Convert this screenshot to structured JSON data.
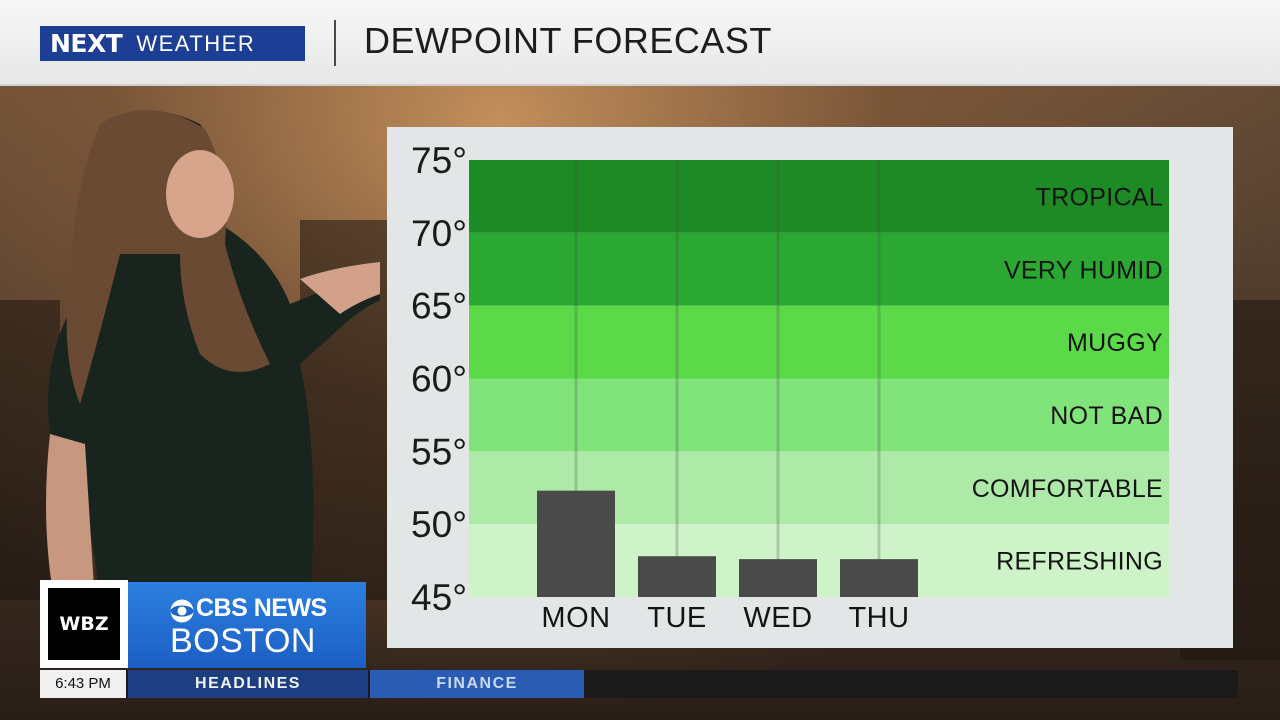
{
  "header": {
    "logo_next": "NEXT",
    "logo_weather": "WEATHER",
    "title": "DEWPOINT FORECAST"
  },
  "chart_data": {
    "type": "bar",
    "title": "DEWPOINT FORECAST",
    "categories": [
      "MON",
      "TUE",
      "WED",
      "THU"
    ],
    "values": [
      52.3,
      47.8,
      47.6,
      47.6
    ],
    "ylim": [
      45,
      75
    ],
    "yticks": [
      75,
      70,
      65,
      60,
      55,
      50,
      45
    ],
    "tick_suffix": "°",
    "grid": false,
    "bar_color": "#4a4a4a",
    "bands": [
      {
        "label": "TROPICAL",
        "from": 70,
        "to": 75,
        "color": "#1d8a26"
      },
      {
        "label": "VERY HUMID",
        "from": 65,
        "to": 70,
        "color": "#2aa831"
      },
      {
        "label": "MUGGY",
        "from": 60,
        "to": 65,
        "color": "#5bd948"
      },
      {
        "label": "NOT BAD",
        "from": 55,
        "to": 60,
        "color": "#80e47a"
      },
      {
        "label": "COMFORTABLE",
        "from": 50,
        "to": 55,
        "color": "#ade9a7"
      },
      {
        "label": "REFRESHING",
        "from": 45,
        "to": 50,
        "color": "#cef3c9"
      }
    ]
  },
  "lower_third": {
    "station": "WBZ",
    "network": "CBS NEWS",
    "city": "BOSTON",
    "time": "6:43 PM",
    "ticker_items": [
      "HEADLINES",
      "FINANCE"
    ]
  }
}
